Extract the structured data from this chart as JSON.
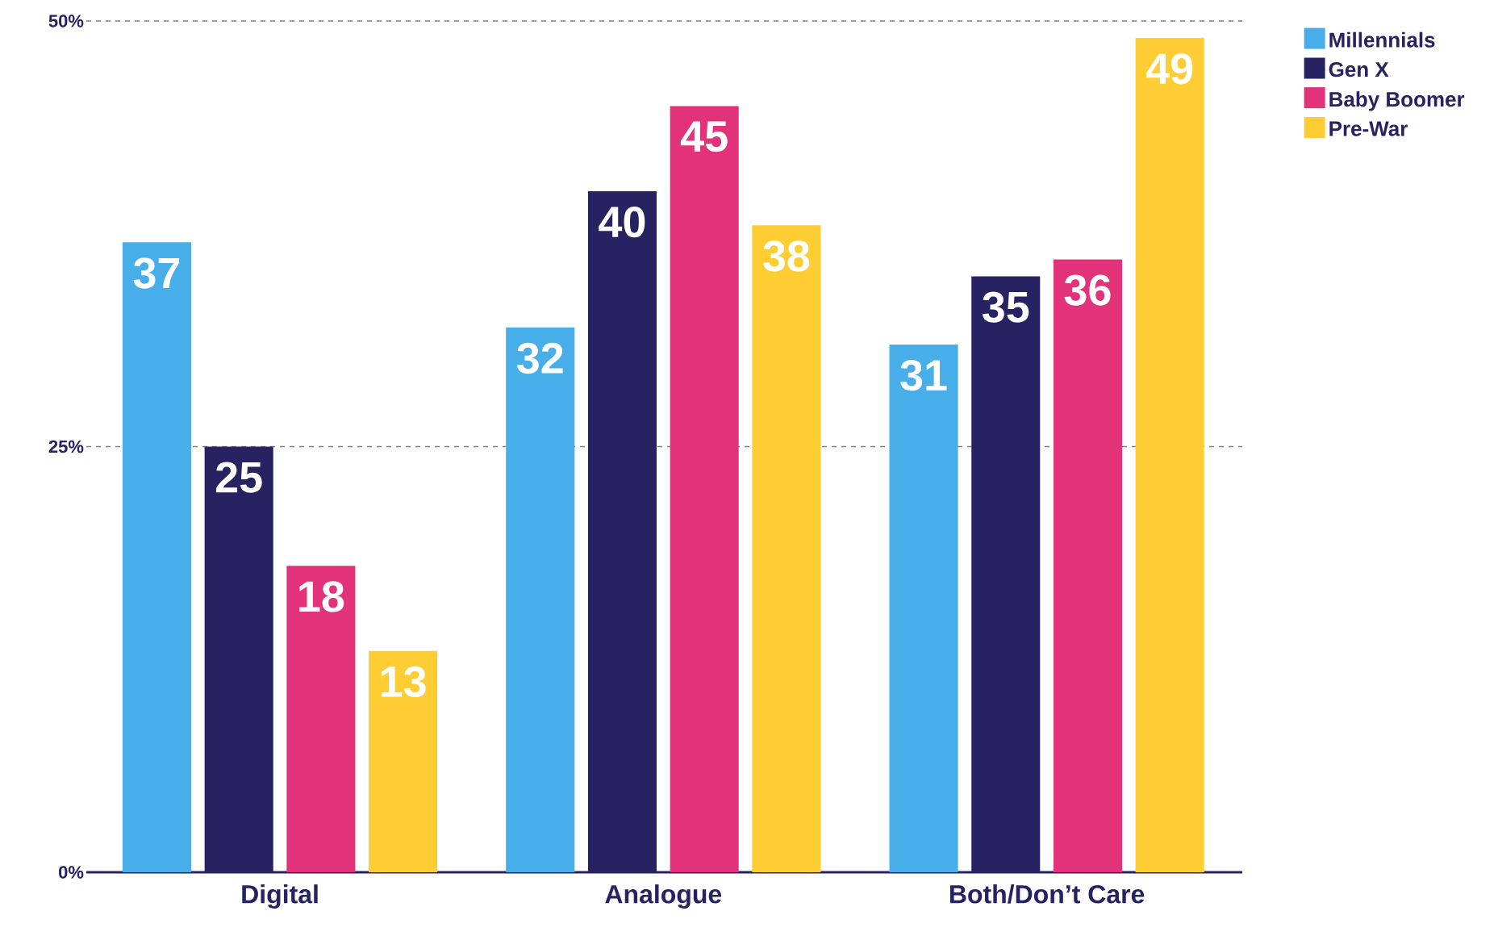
{
  "chart_data": {
    "type": "bar",
    "categories": [
      "Digital",
      "Analogue",
      "Both/Don’t Care"
    ],
    "series": [
      {
        "name": "Millennials",
        "color": "#47aeea",
        "values": [
          37,
          32,
          31
        ]
      },
      {
        "name": "Gen X",
        "color": "#272262",
        "values": [
          25,
          40,
          35
        ]
      },
      {
        "name": "Baby Boomer",
        "color": "#e2337a",
        "values": [
          18,
          45,
          36
        ]
      },
      {
        "name": "Pre-War",
        "color": "#fecd34",
        "values": [
          13,
          38,
          49
        ]
      }
    ],
    "ylim": [
      0,
      50
    ],
    "yticks": [
      {
        "value": 0,
        "label": "0%"
      },
      {
        "value": 25,
        "label": "25%"
      },
      {
        "value": 50,
        "label": "50%"
      }
    ],
    "grid": "y",
    "legend": "top right",
    "data_labels": true
  }
}
